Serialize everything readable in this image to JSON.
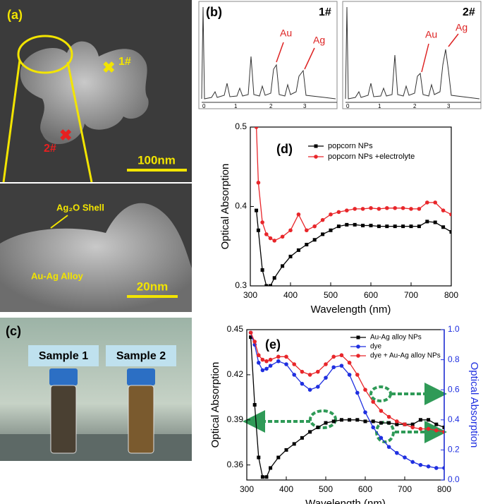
{
  "images": {
    "a": {
      "label": "(a)",
      "points": [
        "1#",
        "2#"
      ],
      "scale_top": "100nm",
      "shell": "Ag₂O Shell",
      "core": "Au-Ag Alloy",
      "scale_bottom": "20nm"
    },
    "b": {
      "label": "(b)",
      "spectra": [
        {
          "name": "1#",
          "peaks": [
            "Au",
            "Ag"
          ],
          "ticks": [
            "0",
            "1",
            "2",
            "3"
          ]
        },
        {
          "name": "2#",
          "peaks": [
            "Au",
            "Ag"
          ],
          "ticks": [
            "0",
            "1",
            "2",
            "3"
          ]
        }
      ]
    },
    "c": {
      "label": "(c)",
      "samples": [
        "Sample 1",
        "Sample 2"
      ]
    }
  },
  "chart_data": [
    {
      "type": "line",
      "annotation": "(d)",
      "xlabel": "Wavelength (nm)",
      "ylabel": "Optical Absorption",
      "xlim": [
        300,
        800
      ],
      "xticks": [
        300,
        400,
        500,
        600,
        700,
        800
      ],
      "ylim": [
        0.3,
        0.5
      ],
      "yticks": [
        0.3,
        0.4,
        0.5
      ],
      "legend": "upper right",
      "x": [
        315,
        320,
        330,
        340,
        350,
        360,
        380,
        400,
        420,
        440,
        460,
        480,
        500,
        520,
        540,
        560,
        580,
        600,
        620,
        640,
        660,
        680,
        700,
        720,
        740,
        760,
        780,
        800
      ],
      "series": [
        {
          "name": "popcorn NPs",
          "color": "#000000",
          "marker": "square",
          "values": [
            0.395,
            0.37,
            0.32,
            0.3,
            0.3,
            0.31,
            0.325,
            0.337,
            0.345,
            0.352,
            0.358,
            0.365,
            0.37,
            0.375,
            0.377,
            0.377,
            0.376,
            0.376,
            0.375,
            0.375,
            0.375,
            0.375,
            0.375,
            0.375,
            0.381,
            0.38,
            0.374,
            0.368
          ]
        },
        {
          "name": "popcorn NPs +electrolyte",
          "color": "#e8262a",
          "marker": "circle",
          "values": [
            0.5,
            0.43,
            0.38,
            0.365,
            0.36,
            0.357,
            0.362,
            0.37,
            0.39,
            0.37,
            0.375,
            0.383,
            0.39,
            0.393,
            0.395,
            0.397,
            0.397,
            0.398,
            0.397,
            0.398,
            0.398,
            0.398,
            0.397,
            0.397,
            0.405,
            0.405,
            0.395,
            0.39
          ]
        }
      ]
    },
    {
      "type": "line",
      "annotation": "(e)",
      "xlabel": "Wavelength (nm)",
      "ylabel": "Optical Absorption",
      "y2label": "Optical Absorption",
      "y2color": "#1f2fe0",
      "xlim": [
        300,
        800
      ],
      "xticks": [
        300,
        400,
        500,
        600,
        700,
        800
      ],
      "ylim": [
        0.35,
        0.45
      ],
      "yticks": [
        0.36,
        0.39,
        0.42,
        0.45
      ],
      "y2lim": [
        0,
        1
      ],
      "y2ticks": [
        {
          "value": 0,
          "label": "0.0"
        },
        0.2,
        0.4,
        0.6,
        0.8,
        {
          "value": 1,
          "label": "1.0"
        }
      ],
      "legend": "upper right",
      "x": [
        310,
        320,
        330,
        340,
        350,
        360,
        380,
        400,
        420,
        440,
        460,
        480,
        500,
        520,
        540,
        560,
        580,
        600,
        620,
        640,
        660,
        680,
        700,
        720,
        740,
        760,
        780,
        800
      ],
      "series": [
        {
          "name": "Au-Ag alloy NPs",
          "color": "#000000",
          "marker": "square",
          "values": [
            0.445,
            0.4,
            0.365,
            0.352,
            0.352,
            0.358,
            0.365,
            0.37,
            0.374,
            0.378,
            0.382,
            0.385,
            0.388,
            0.389,
            0.39,
            0.39,
            0.39,
            0.389,
            0.389,
            0.388,
            0.388,
            0.387,
            0.387,
            0.387,
            0.39,
            0.39,
            0.387,
            0.385
          ]
        },
        {
          "name": "dye",
          "color": "#1f2fe0",
          "marker": "circle",
          "axis": "y2",
          "values": [
            0.98,
            0.9,
            0.78,
            0.73,
            0.74,
            0.76,
            0.79,
            0.77,
            0.7,
            0.64,
            0.6,
            0.62,
            0.68,
            0.75,
            0.76,
            0.7,
            0.58,
            0.45,
            0.35,
            0.28,
            0.22,
            0.18,
            0.15,
            0.12,
            0.1,
            0.09,
            0.08,
            0.08
          ]
        },
        {
          "name": "dye + Au-Ag alloy NPs",
          "color": "#e8262a",
          "marker": "circle",
          "axis": "y2",
          "values": [
            0.98,
            0.92,
            0.83,
            0.8,
            0.79,
            0.8,
            0.82,
            0.82,
            0.77,
            0.72,
            0.7,
            0.72,
            0.77,
            0.82,
            0.83,
            0.78,
            0.7,
            0.6,
            0.52,
            0.46,
            0.42,
            0.39,
            0.37,
            0.35,
            0.34,
            0.34,
            0.33,
            0.32
          ]
        }
      ]
    }
  ]
}
